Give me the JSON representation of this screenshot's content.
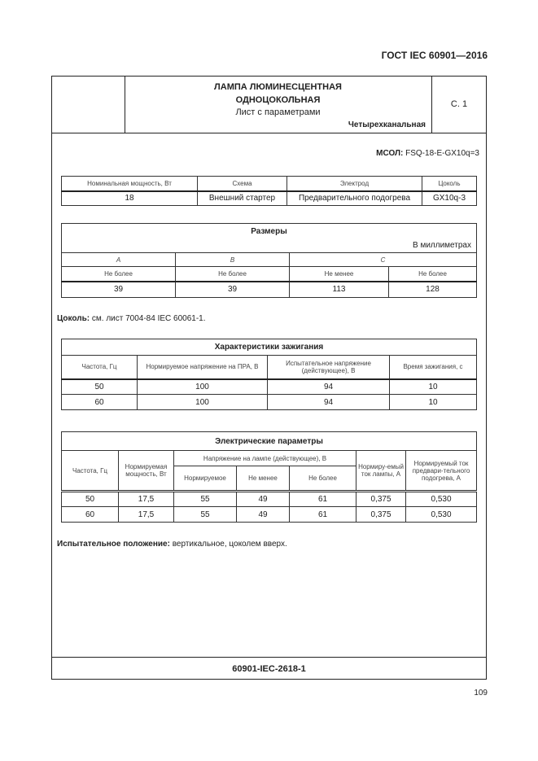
{
  "header": {
    "standard": "ГОСТ IEC 60901—2016",
    "title1": "ЛАМПА ЛЮМИНЕСЦЕНТНАЯ",
    "title2": "ОДНОЦОКОЛЬНАЯ",
    "subtitle": "Лист с параметрами",
    "type": "Четырехканальная",
    "sheet": "С. 1"
  },
  "msol": {
    "label": "МСОЛ:",
    "value": " FSQ-18-E-GX10q=3"
  },
  "t1": {
    "headers": [
      "Номинальная мощность, Вт",
      "Схема",
      "Электрод",
      "Цоколь"
    ],
    "row": [
      "18",
      "Внешний стартер",
      "Предварительного подогрева",
      "GX10q-3"
    ]
  },
  "t2": {
    "title": "Размеры",
    "unit": "В миллиметрах",
    "letters": [
      "A",
      "B",
      "C"
    ],
    "limits": [
      "Не более",
      "Не более",
      "Не менее",
      "Не более"
    ],
    "row": [
      "39",
      "39",
      "113",
      "128"
    ]
  },
  "cap": {
    "label": "Цоколь:",
    "value": " см. лист 7004-84 IEC 60061-1."
  },
  "t3": {
    "title": "Характеристики зажигания",
    "headers": [
      "Частота, Гц",
      "Нормируемое напряжение на ПРА, В",
      "Испытательное напряжение (действующее), В",
      "Время зажигания, с"
    ],
    "rows": [
      [
        "50",
        "100",
        "94",
        "10"
      ],
      [
        "60",
        "100",
        "94",
        "10"
      ]
    ]
  },
  "t4": {
    "title": "Электрические параметры",
    "h_freq": "Частота, Гц",
    "h_power": "Нормируемая мощность, Вт",
    "h_voltage": "Напряжение на лампе (действующее), В",
    "h_sub": [
      "Нормируемое",
      "Не менее",
      "Не более"
    ],
    "h_current": "Нормиру-емый ток лампы, А",
    "h_preheat": "Нормируемый ток предвари-тельного подогрева, А",
    "rows": [
      [
        "50",
        "17,5",
        "55",
        "49",
        "61",
        "0,375",
        "0,530"
      ],
      [
        "60",
        "17,5",
        "55",
        "49",
        "61",
        "0,375",
        "0,530"
      ]
    ]
  },
  "test": {
    "label": "Испытательное положение:",
    "value": " вертикальное, цоколем вверх."
  },
  "footer": {
    "code": "60901-IEC-2618-1",
    "page": "109"
  }
}
